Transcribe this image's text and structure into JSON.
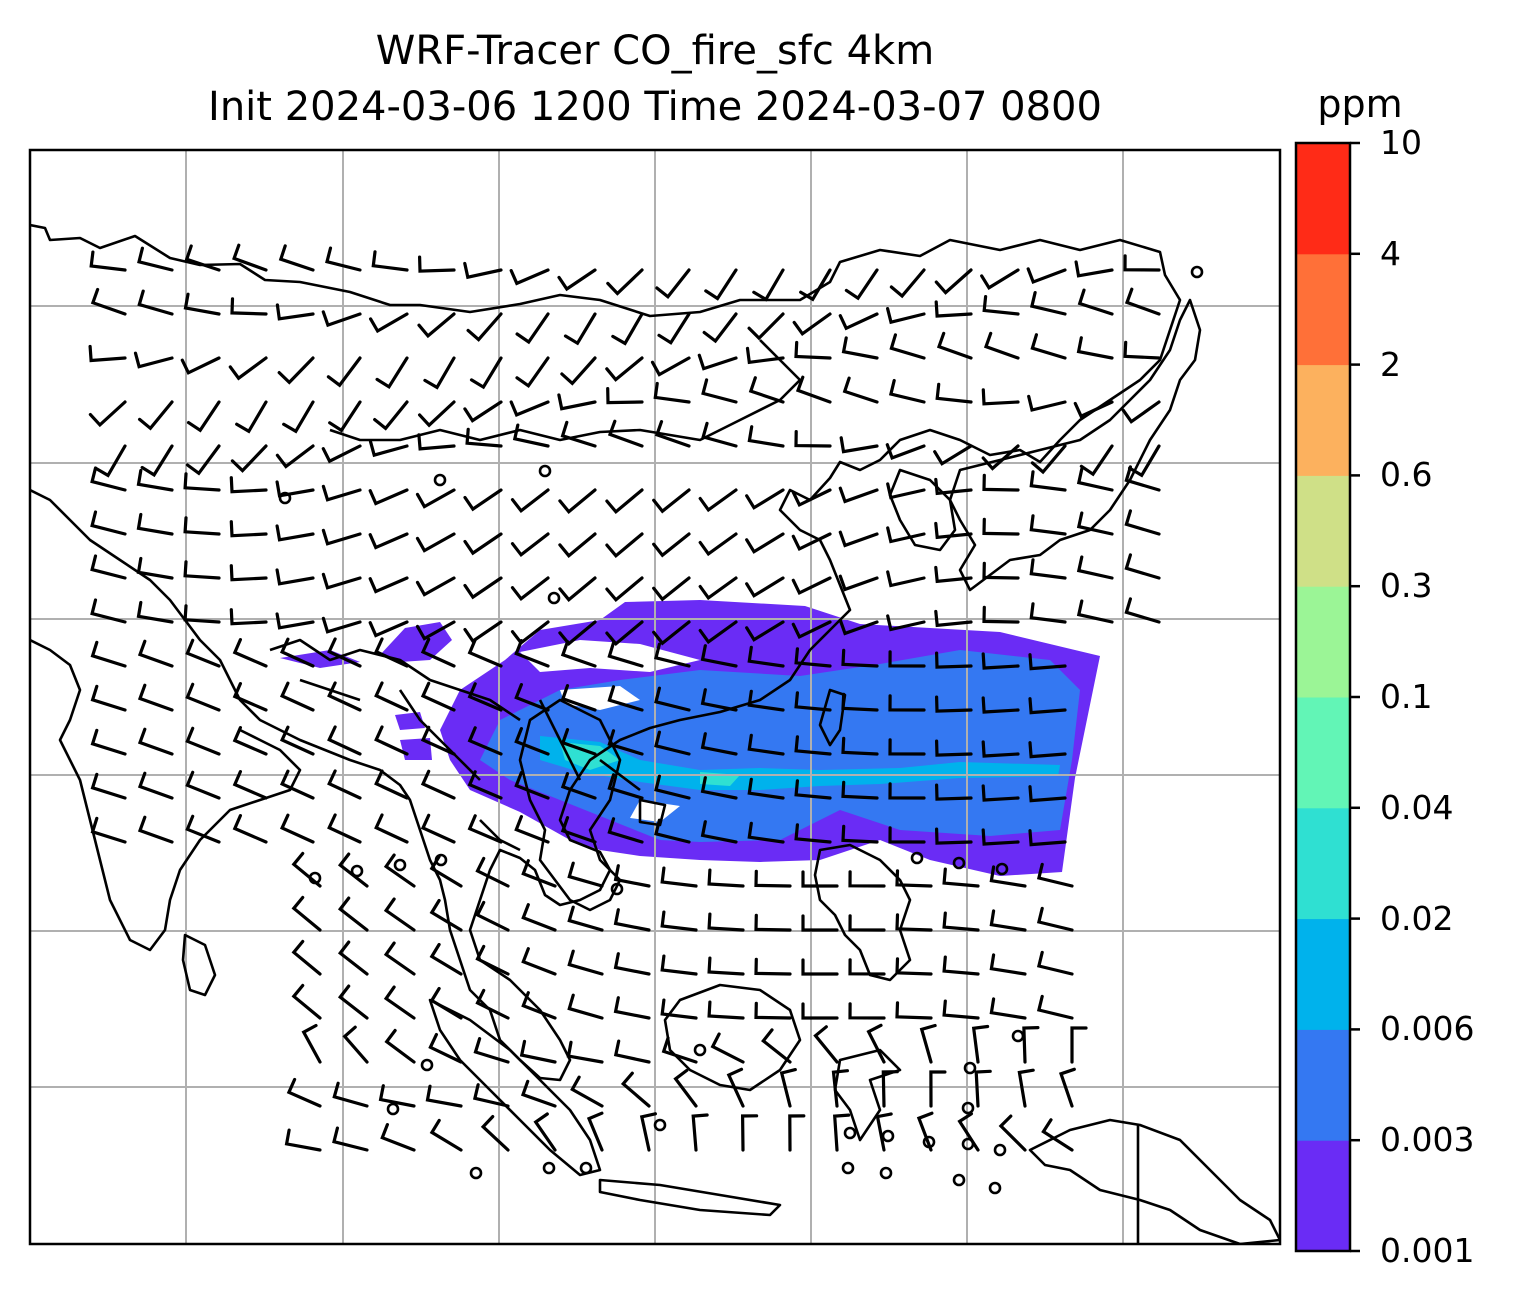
{
  "title": {
    "line1": "WRF-Tracer CO_fire_sfc 4km",
    "line2": "Init 2024-03-06 1200 Time 2024-03-07 0800"
  },
  "colorbar": {
    "unit": "ppm",
    "levels": [
      "0.001",
      "0.003",
      "0.006",
      "0.02",
      "0.04",
      "0.1",
      "0.3",
      "0.6",
      "2",
      "4",
      "10"
    ],
    "colors": [
      "#6a2cf5",
      "#3478f2",
      "#00b2ec",
      "#2fe0d2",
      "#62f5b6",
      "#9bf596",
      "#cfe087",
      "#fcb15e",
      "#ff7038",
      "#ff2b17"
    ]
  },
  "map": {
    "fire_plume_colors": {
      "low": "#6a2cf5",
      "mid": "#3478f2",
      "high": "#00b2ec",
      "peak": "#2fe0d2"
    },
    "gridline_color": "#b0b0b0",
    "coastline_color": "#000000",
    "wind_barb_color": "#000000"
  }
}
